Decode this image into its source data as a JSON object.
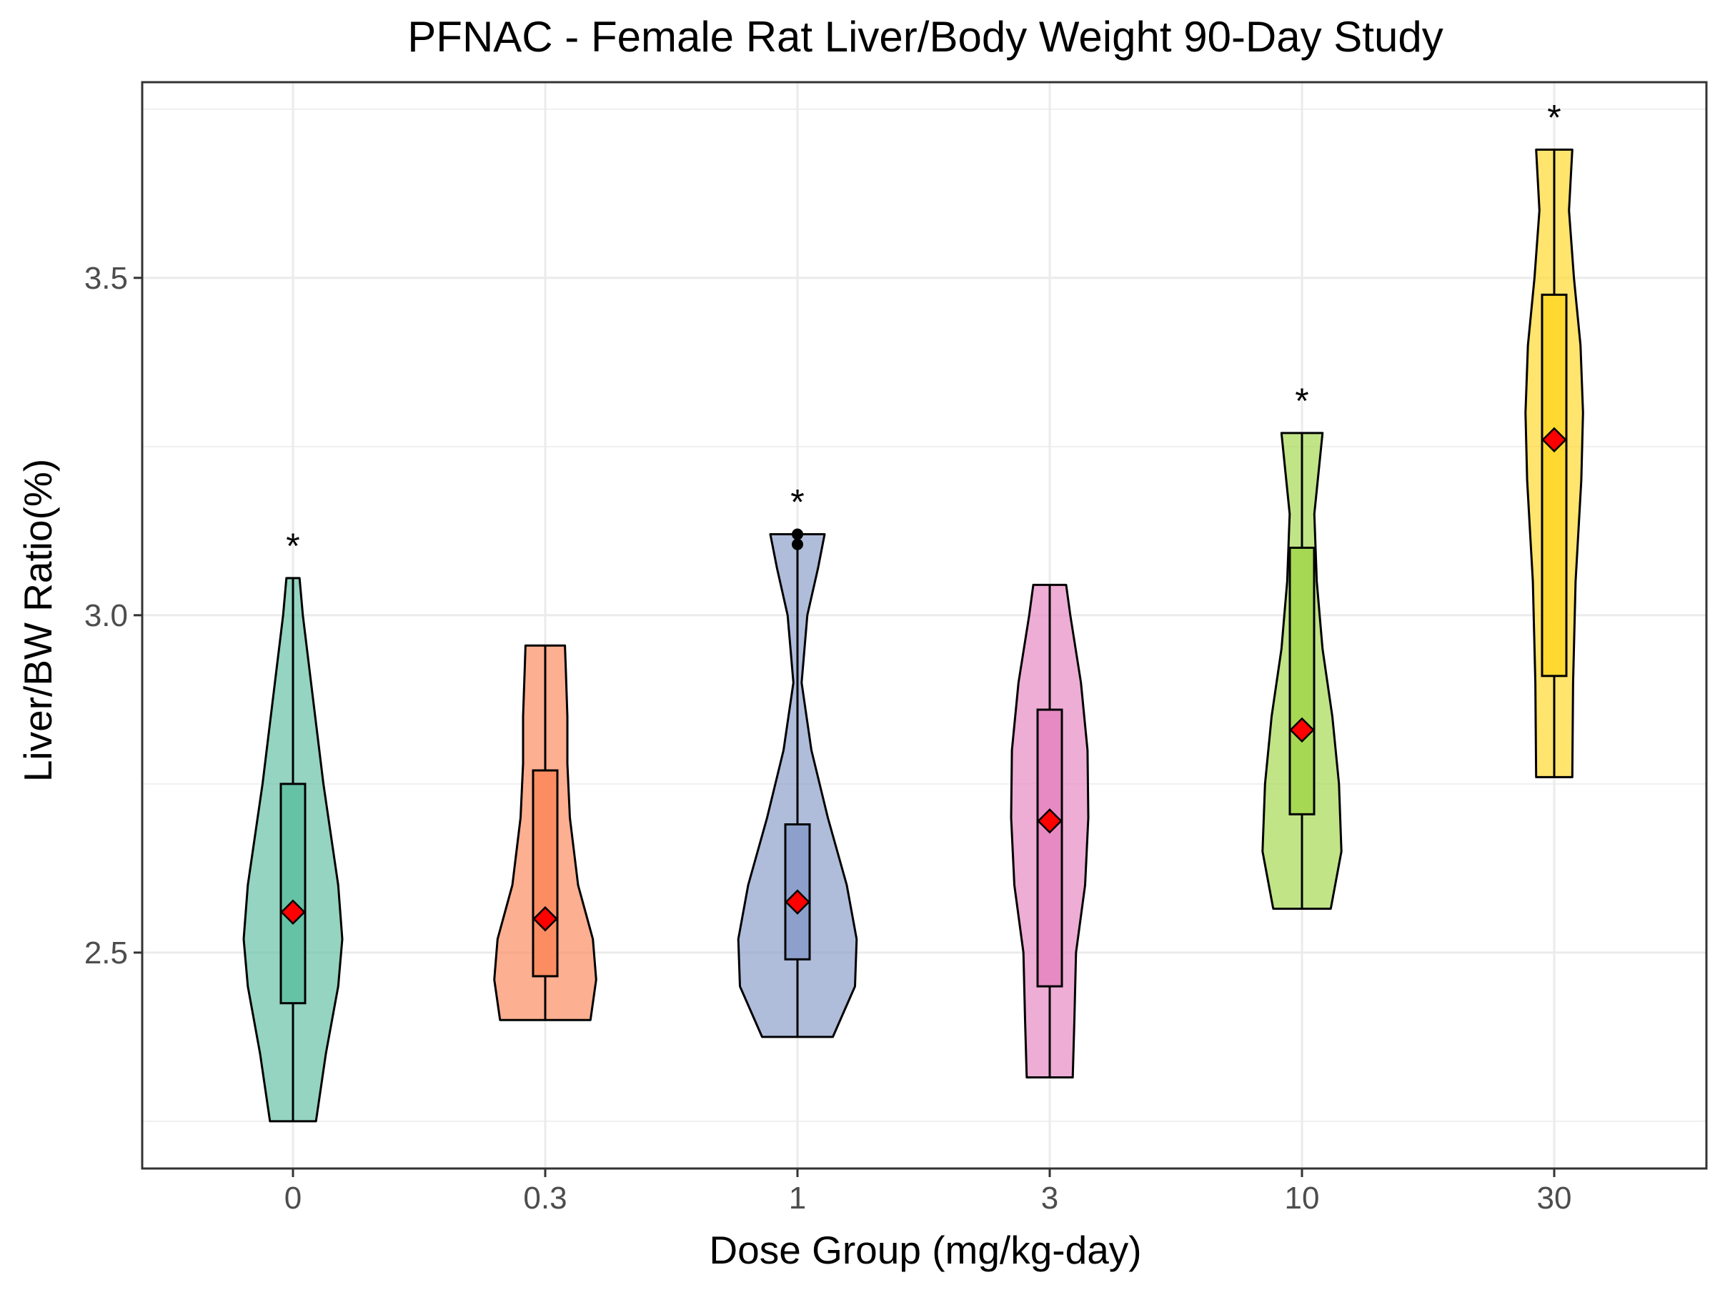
{
  "chart_data": {
    "type": "violin",
    "title": "PFNAC - Female Rat Liver/Body Weight 90-Day Study",
    "xlabel": "Dose Group (mg/kg-day)",
    "ylabel": "Liver/BW Ratio(%)",
    "ylim": [
      2.18,
      3.79
    ],
    "yticks": [
      2.5,
      3.0,
      3.5
    ],
    "ytick_labels": [
      "2.5",
      "3.0",
      "3.5"
    ],
    "grid": true,
    "legend": "none",
    "groups": [
      {
        "category": "0",
        "color": "#66c2a5",
        "significance": "*",
        "min": 2.25,
        "q1": 2.425,
        "median": 2.56,
        "q3": 2.75,
        "max": 3.055,
        "mean": 2.56,
        "outliers": [],
        "density": [
          [
            2.25,
            0.28
          ],
          [
            2.35,
            0.4
          ],
          [
            2.45,
            0.55
          ],
          [
            2.52,
            0.6
          ],
          [
            2.6,
            0.55
          ],
          [
            2.75,
            0.37
          ],
          [
            2.9,
            0.22
          ],
          [
            3.0,
            0.12
          ],
          [
            3.055,
            0.08
          ]
        ]
      },
      {
        "category": "0.3",
        "color": "#fc8d62",
        "significance": "",
        "min": 2.4,
        "q1": 2.465,
        "median": 2.55,
        "q3": 2.77,
        "max": 2.955,
        "mean": 2.55,
        "outliers": [],
        "density": [
          [
            2.4,
            0.55
          ],
          [
            2.46,
            0.62
          ],
          [
            2.52,
            0.58
          ],
          [
            2.6,
            0.4
          ],
          [
            2.7,
            0.3
          ],
          [
            2.78,
            0.27
          ],
          [
            2.85,
            0.27
          ],
          [
            2.92,
            0.25
          ],
          [
            2.955,
            0.24
          ]
        ]
      },
      {
        "category": "1",
        "color": "#8da0cb",
        "significance": "*",
        "min": 2.375,
        "q1": 2.49,
        "median": 2.575,
        "q3": 2.69,
        "max": 3.12,
        "mean": 2.575,
        "outliers": [
          3.105,
          3.12
        ],
        "density": [
          [
            2.375,
            0.43
          ],
          [
            2.45,
            0.7
          ],
          [
            2.52,
            0.72
          ],
          [
            2.6,
            0.6
          ],
          [
            2.7,
            0.37
          ],
          [
            2.8,
            0.17
          ],
          [
            2.9,
            0.05
          ],
          [
            3.0,
            0.12
          ],
          [
            3.07,
            0.25
          ],
          [
            3.12,
            0.33
          ]
        ]
      },
      {
        "category": "3",
        "color": "#e78ac3",
        "significance": "",
        "min": 2.315,
        "q1": 2.45,
        "median": 2.695,
        "q3": 2.86,
        "max": 3.045,
        "mean": 2.695,
        "outliers": [],
        "density": [
          [
            2.315,
            0.28
          ],
          [
            2.4,
            0.3
          ],
          [
            2.5,
            0.32
          ],
          [
            2.6,
            0.43
          ],
          [
            2.7,
            0.47
          ],
          [
            2.8,
            0.46
          ],
          [
            2.9,
            0.38
          ],
          [
            3.0,
            0.25
          ],
          [
            3.045,
            0.2
          ]
        ]
      },
      {
        "category": "10",
        "color": "#a6d854",
        "significance": "*",
        "min": 2.565,
        "q1": 2.705,
        "median": 2.83,
        "q3": 3.1,
        "max": 3.27,
        "mean": 2.83,
        "outliers": [],
        "density": [
          [
            2.565,
            0.35
          ],
          [
            2.65,
            0.48
          ],
          [
            2.75,
            0.45
          ],
          [
            2.85,
            0.37
          ],
          [
            2.95,
            0.25
          ],
          [
            3.05,
            0.18
          ],
          [
            3.15,
            0.15
          ],
          [
            3.27,
            0.25
          ]
        ]
      },
      {
        "category": "30",
        "color": "#ffd92f",
        "significance": "*",
        "min": 2.76,
        "q1": 2.91,
        "median": 3.26,
        "q3": 3.475,
        "max": 3.69,
        "mean": 3.26,
        "outliers": [],
        "density": [
          [
            2.76,
            0.22
          ],
          [
            2.9,
            0.23
          ],
          [
            3.05,
            0.26
          ],
          [
            3.2,
            0.33
          ],
          [
            3.3,
            0.35
          ],
          [
            3.4,
            0.32
          ],
          [
            3.5,
            0.24
          ],
          [
            3.6,
            0.18
          ],
          [
            3.69,
            0.22
          ]
        ]
      }
    ]
  }
}
